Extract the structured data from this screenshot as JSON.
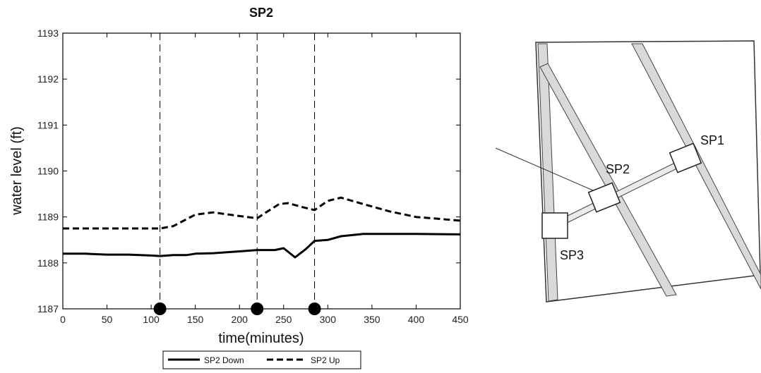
{
  "chart_data": {
    "type": "line",
    "title": "SP2",
    "xlabel": "time(minutes)",
    "ylabel": "water level (ft)",
    "xlim": [
      0,
      450
    ],
    "ylim": [
      1187,
      1193
    ],
    "xticks": [
      0,
      50,
      100,
      150,
      200,
      250,
      300,
      350,
      400,
      450
    ],
    "yticks": [
      1187,
      1188,
      1189,
      1190,
      1191,
      1192,
      1193
    ],
    "grid": false,
    "legend_position": "bottom-center",
    "vertical_markers": [
      110,
      220,
      285
    ],
    "series": [
      {
        "name": "SP2 Down",
        "style": "solid",
        "color": "#000000",
        "x": [
          0,
          25,
          50,
          75,
          100,
          110,
          125,
          140,
          150,
          170,
          200,
          220,
          230,
          240,
          250,
          263,
          275,
          285,
          300,
          315,
          340,
          370,
          400,
          450
        ],
        "y": [
          1188.2,
          1188.2,
          1188.18,
          1188.18,
          1188.16,
          1188.15,
          1188.17,
          1188.17,
          1188.2,
          1188.21,
          1188.25,
          1188.28,
          1188.28,
          1188.28,
          1188.32,
          1188.12,
          1188.3,
          1188.48,
          1188.5,
          1188.58,
          1188.63,
          1188.63,
          1188.63,
          1188.62
        ]
      },
      {
        "name": "SP2 Up",
        "style": "dashed",
        "color": "#000000",
        "x": [
          0,
          50,
          100,
          110,
          125,
          135,
          150,
          170,
          200,
          220,
          230,
          245,
          255,
          270,
          285,
          300,
          315,
          340,
          370,
          400,
          450
        ],
        "y": [
          1188.75,
          1188.75,
          1188.75,
          1188.75,
          1188.8,
          1188.9,
          1189.05,
          1189.1,
          1189.02,
          1188.97,
          1189.1,
          1189.28,
          1189.3,
          1189.22,
          1189.15,
          1189.35,
          1189.42,
          1189.28,
          1189.12,
          1189.0,
          1188.92
        ]
      }
    ]
  },
  "diagram": {
    "labels": [
      "SP1",
      "SP2",
      "SP3"
    ]
  }
}
